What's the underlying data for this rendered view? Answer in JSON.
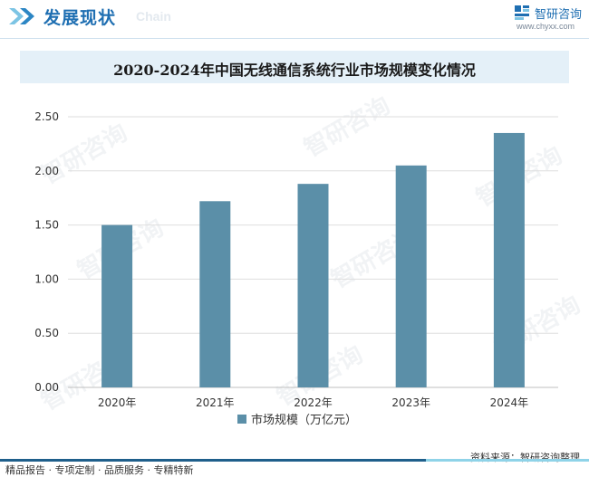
{
  "header": {
    "title": "发展现状",
    "subtitle": "Chain",
    "brand_name": "智研咨询",
    "brand_url": "www.chyxx.com"
  },
  "watermark_text": "智研咨询",
  "chart_data": {
    "type": "bar",
    "title": "2020-2024年中国无线通信系统行业市场规模变化情况",
    "categories": [
      "2020年",
      "2021年",
      "2022年",
      "2023年",
      "2024年"
    ],
    "series": [
      {
        "name": "市场规模（万亿元）",
        "values": [
          1.5,
          1.72,
          1.88,
          2.05,
          2.35
        ],
        "color": "#5b8fa8"
      }
    ],
    "ylim": [
      0,
      2.5
    ],
    "yticks": [
      "0.00",
      "0.50",
      "1.00",
      "1.50",
      "2.00",
      "2.50"
    ],
    "grid": true,
    "legend_position": "bottom"
  },
  "footer": {
    "left": "精品报告 · 专项定制 · 品质服务 · 专精特新",
    "source": "资料来源：智研咨询整理"
  },
  "colors": {
    "accent": "#1f6fb2",
    "bar": "#5b8fa8",
    "footer_dark": "#1f5f8b",
    "footer_light": "#8fd3e8"
  }
}
